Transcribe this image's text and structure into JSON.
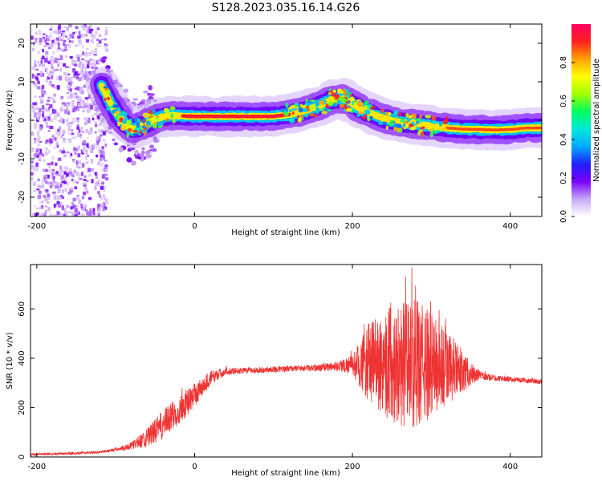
{
  "title": "S128.2023.035.16.14.G26",
  "chart_data": [
    {
      "type": "heatmap",
      "xlabel": "Height of straight line (km)",
      "ylabel": "Frequency (Hz)",
      "xlim": [
        -208,
        440
      ],
      "ylim": [
        -25,
        25
      ],
      "x_ticks": [
        -200,
        0,
        200,
        400
      ],
      "x_tick_labels": [
        "-200",
        "0",
        "200",
        "400"
      ],
      "y_ticks": [
        -20,
        -10,
        0,
        10,
        20
      ],
      "y_tick_labels": [
        "-20",
        "-10",
        "0",
        "10",
        "20"
      ],
      "grid": false,
      "ridge": {
        "x": [
          -118,
          -108,
          -98,
          -88,
          -78,
          -68,
          -58,
          -48,
          -38,
          -28,
          0,
          50,
          100,
          120,
          140,
          160,
          175,
          190,
          205,
          220,
          240,
          260,
          280,
          300,
          320,
          340,
          360,
          380,
          400,
          420,
          440
        ],
        "y": [
          9,
          5,
          1.5,
          -1,
          -2.5,
          -1.5,
          -0.5,
          0.5,
          1,
          1.2,
          1,
          1,
          1,
          1.5,
          2.5,
          4,
          5.5,
          5.5,
          3.5,
          2,
          0.5,
          -0.5,
          -1,
          -1.5,
          -2,
          -2.3,
          -2.4,
          -2.5,
          -2.4,
          -2,
          -2
        ]
      },
      "colorbar": {
        "label": "Normalized spectral amplitude",
        "range": [
          0,
          1
        ],
        "ticks": [
          0,
          0.2,
          0.4,
          0.6,
          0.8
        ],
        "tick_labels": [
          "0.0",
          "0.2",
          "0.4",
          "0.6",
          "0.8"
        ],
        "colormap": [
          "#ffffff",
          "#c8a8f8",
          "#7a00ff",
          "#2020ff",
          "#00aaff",
          "#00e8d8",
          "#00ff60",
          "#a0ff00",
          "#ffff00",
          "#ffa000",
          "#ff2020",
          "#ff0060"
        ]
      }
    },
    {
      "type": "line",
      "xlabel": "Height of straight line (km)",
      "ylabel": "SNR (10 * v/v)",
      "xlim": [
        -208,
        440
      ],
      "ylim": [
        0,
        780
      ],
      "x_ticks": [
        -200,
        0,
        200,
        400
      ],
      "x_tick_labels": [
        "-200",
        "0",
        "200",
        "400"
      ],
      "y_ticks": [
        0,
        200,
        400,
        600
      ],
      "y_tick_labels": [
        "0",
        "200",
        "400",
        "600"
      ],
      "grid": false,
      "series": [
        {
          "color": "#ee3333",
          "x": [
            -208,
            -180,
            -150,
            -120,
            -100,
            -80,
            -60,
            -40,
            -20,
            0,
            20,
            40,
            60,
            80,
            100,
            120,
            140,
            160,
            180,
            200,
            220,
            240,
            260,
            280,
            300,
            320,
            340,
            360,
            380,
            400,
            420,
            440
          ],
          "y": [
            10,
            12,
            15,
            20,
            30,
            45,
            80,
            130,
            190,
            250,
            320,
            348,
            350,
            352,
            355,
            358,
            360,
            362,
            368,
            375,
            380,
            385,
            380,
            378,
            370,
            360,
            345,
            330,
            320,
            315,
            310,
            305
          ],
          "spread": [
            5,
            5,
            5,
            5,
            8,
            15,
            40,
            60,
            60,
            50,
            30,
            15,
            12,
            12,
            12,
            12,
            12,
            15,
            20,
            40,
            160,
            220,
            260,
            260,
            220,
            160,
            80,
            20,
            12,
            10,
            10,
            10
          ]
        }
      ]
    }
  ]
}
